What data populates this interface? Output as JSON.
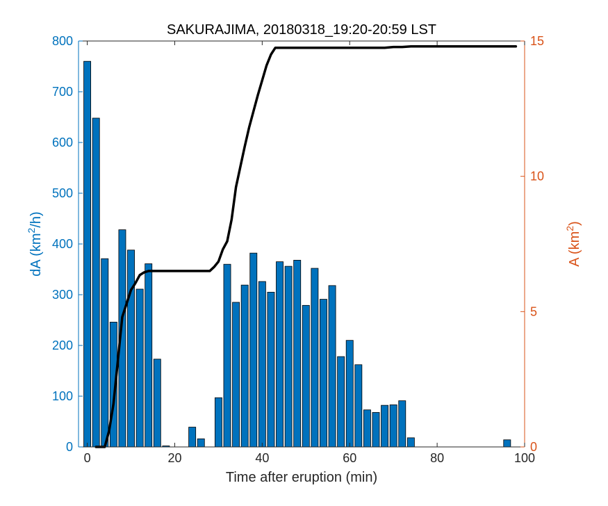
{
  "chart_data": {
    "type": "bar",
    "title": "SAKURAJIMA, 20180318_19:20-20:59 LST",
    "xlabel": "Time after eruption (min)",
    "ylabel_left": "dA (km²/h)",
    "ylabel_right": "A (km²)",
    "xlim": [
      -2,
      100
    ],
    "ylim_left": [
      0,
      800
    ],
    "ylim_right": [
      0,
      15
    ],
    "x_ticks": [
      0,
      20,
      40,
      60,
      80,
      100
    ],
    "y_left_ticks": [
      0,
      100,
      200,
      300,
      400,
      500,
      600,
      700,
      800
    ],
    "y_right_ticks": [
      0,
      5,
      10,
      15
    ],
    "grid": false,
    "colors": {
      "bars": "#0072BD",
      "bar_edge": "#000000",
      "left_axis": "#0072BD",
      "right_axis": "#D95319",
      "line": "#000000"
    },
    "series": [
      {
        "type": "bar",
        "axis": "left",
        "x": [
          0,
          2,
          4,
          6,
          8,
          10,
          12,
          14,
          16,
          18,
          20,
          22,
          24,
          26,
          28,
          30,
          32,
          34,
          36,
          38,
          40,
          42,
          44,
          46,
          48,
          50,
          52,
          54,
          56,
          58,
          60,
          62,
          64,
          66,
          68,
          70,
          72,
          74,
          76,
          78,
          80,
          82,
          84,
          86,
          88,
          90,
          92,
          94,
          96,
          98
        ],
        "values": [
          760,
          648,
          371,
          246,
          428,
          388,
          311,
          361,
          173,
          2,
          0,
          0,
          39,
          16,
          0,
          97,
          360,
          285,
          319,
          382,
          326,
          305,
          365,
          356,
          368,
          279,
          352,
          291,
          318,
          178,
          210,
          162,
          73,
          68,
          82,
          83,
          91,
          18,
          0,
          0,
          0,
          0,
          0,
          0,
          0,
          0,
          0,
          0,
          14,
          0
        ]
      },
      {
        "type": "line",
        "axis": "right",
        "x": [
          2,
          4,
          5,
          6,
          7,
          8,
          9,
          10,
          11,
          12,
          13,
          14,
          16,
          18,
          20,
          22,
          24,
          26,
          28,
          29,
          30,
          31,
          32,
          33,
          34,
          35,
          36,
          37,
          38,
          39,
          40,
          41,
          42,
          43,
          44,
          46,
          48,
          50,
          52,
          54,
          56,
          58,
          60,
          62,
          64,
          66,
          68,
          70,
          72,
          74,
          76,
          78,
          80,
          82,
          84,
          86,
          88,
          90,
          92,
          94,
          96,
          98
        ],
        "values": [
          0,
          0,
          0.6,
          1.6,
          3.2,
          4.8,
          5.3,
          5.8,
          6.05,
          6.35,
          6.45,
          6.5,
          6.5,
          6.5,
          6.5,
          6.5,
          6.5,
          6.5,
          6.5,
          6.65,
          6.85,
          7.3,
          7.6,
          8.4,
          9.6,
          10.35,
          11.1,
          11.8,
          12.4,
          13.0,
          13.55,
          14.1,
          14.5,
          14.75,
          14.75,
          14.75,
          14.75,
          14.75,
          14.75,
          14.75,
          14.75,
          14.75,
          14.75,
          14.75,
          14.75,
          14.75,
          14.75,
          14.78,
          14.78,
          14.8,
          14.8,
          14.8,
          14.8,
          14.8,
          14.8,
          14.8,
          14.8,
          14.8,
          14.8,
          14.8,
          14.8,
          14.8
        ]
      }
    ]
  }
}
